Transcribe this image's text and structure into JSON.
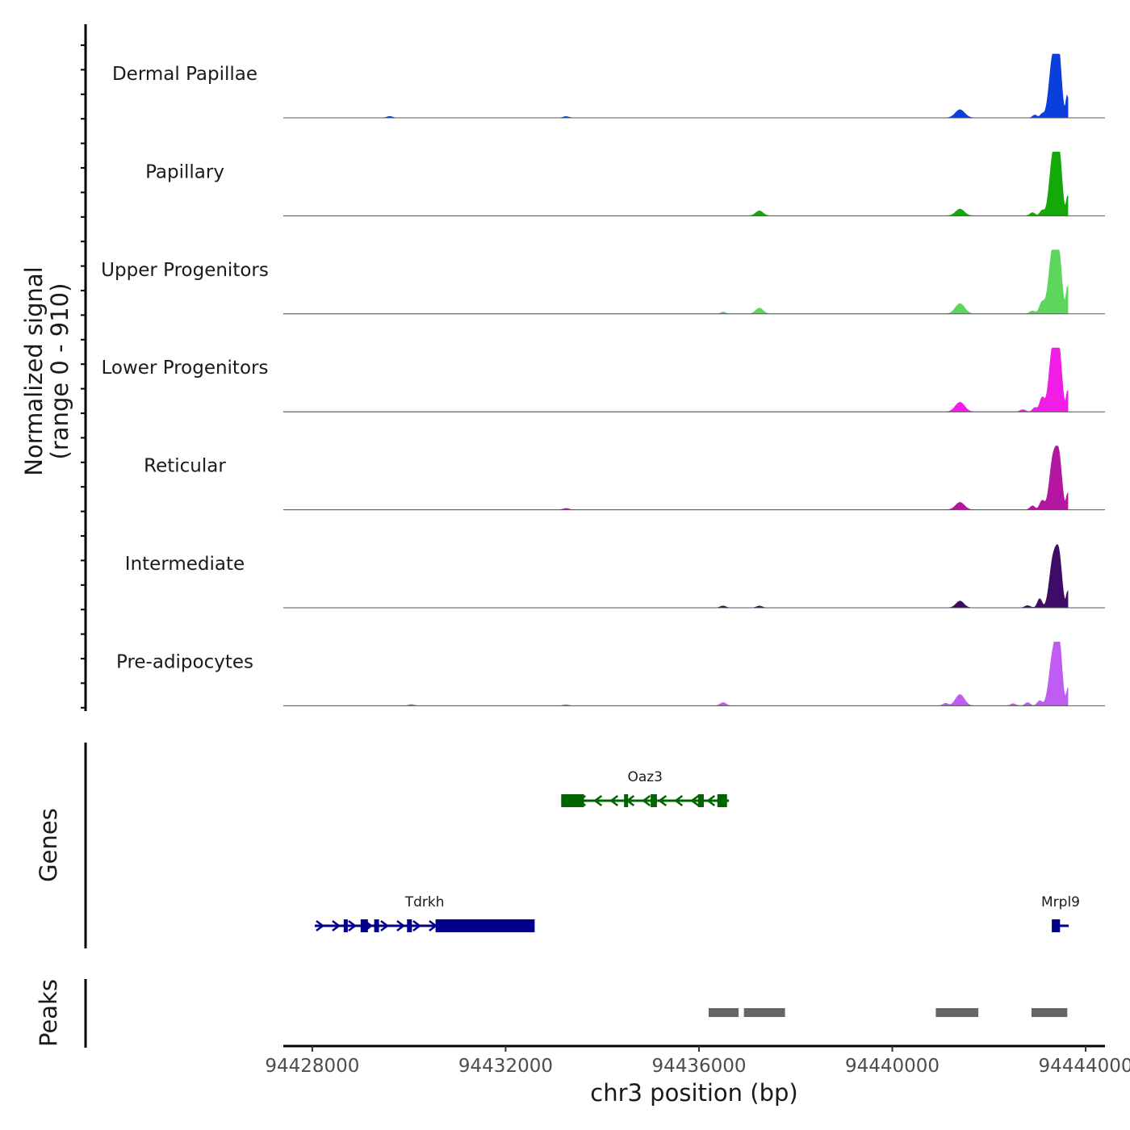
{
  "chart_data": {
    "type": "area",
    "title": "",
    "xlabel": "chr3 position (bp)",
    "ylabel": "Normalized signal\n(range 0 - 910)",
    "xlim": [
      94427400,
      94444400
    ],
    "ylim": [
      0,
      910
    ],
    "x_ticks": [
      94428000,
      94432000,
      94436000,
      94440000,
      94444000
    ],
    "x_tick_labels": [
      "94428000",
      "94432000",
      "94436000",
      "94440000",
      "94444000"
    ],
    "series": [
      {
        "name": "Dermal Papillae",
        "color": "#0b3fdb",
        "peaks": [
          {
            "pos": 94429600,
            "h": 20,
            "w": 55
          },
          {
            "pos": 94433250,
            "h": 18,
            "w": 55
          },
          {
            "pos": 94441400,
            "h": 115,
            "w": 95
          },
          {
            "pos": 94442950,
            "h": 40,
            "w": 45
          },
          {
            "pos": 94443100,
            "h": 55,
            "w": 40
          },
          {
            "pos": 94443320,
            "h": 830,
            "w": 75
          },
          {
            "pos": 94443440,
            "h": 840,
            "w": 60
          },
          {
            "pos": 94443620,
            "h": 310,
            "w": 30
          }
        ]
      },
      {
        "name": "Papillary",
        "color": "#14a80a",
        "peaks": [
          {
            "pos": 94437250,
            "h": 70,
            "w": 75
          },
          {
            "pos": 94441400,
            "h": 95,
            "w": 90
          },
          {
            "pos": 94442900,
            "h": 45,
            "w": 50
          },
          {
            "pos": 94443100,
            "h": 75,
            "w": 45
          },
          {
            "pos": 94443330,
            "h": 860,
            "w": 75
          },
          {
            "pos": 94443450,
            "h": 790,
            "w": 60
          },
          {
            "pos": 94443630,
            "h": 280,
            "w": 30
          }
        ]
      },
      {
        "name": "Upper Progenitors",
        "color": "#5cd65c",
        "peaks": [
          {
            "pos": 94436500,
            "h": 25,
            "w": 45
          },
          {
            "pos": 94437250,
            "h": 80,
            "w": 75
          },
          {
            "pos": 94441400,
            "h": 145,
            "w": 95
          },
          {
            "pos": 94442900,
            "h": 40,
            "w": 55
          },
          {
            "pos": 94443100,
            "h": 160,
            "w": 55
          },
          {
            "pos": 94443320,
            "h": 910,
            "w": 80
          },
          {
            "pos": 94443450,
            "h": 700,
            "w": 60
          },
          {
            "pos": 94443630,
            "h": 390,
            "w": 35
          }
        ]
      },
      {
        "name": "Lower Progenitors",
        "color": "#f01de6",
        "peaks": [
          {
            "pos": 94441400,
            "h": 135,
            "w": 95
          },
          {
            "pos": 94442700,
            "h": 30,
            "w": 55
          },
          {
            "pos": 94442950,
            "h": 60,
            "w": 45
          },
          {
            "pos": 94443100,
            "h": 200,
            "w": 50
          },
          {
            "pos": 94443320,
            "h": 905,
            "w": 75
          },
          {
            "pos": 94443450,
            "h": 780,
            "w": 60
          },
          {
            "pos": 94443630,
            "h": 300,
            "w": 30
          }
        ]
      },
      {
        "name": "Reticular",
        "color": "#b3179f",
        "peaks": [
          {
            "pos": 94433250,
            "h": 18,
            "w": 60
          },
          {
            "pos": 94441400,
            "h": 105,
            "w": 90
          },
          {
            "pos": 94442900,
            "h": 55,
            "w": 50
          },
          {
            "pos": 94443100,
            "h": 130,
            "w": 50
          },
          {
            "pos": 94443330,
            "h": 730,
            "w": 75
          },
          {
            "pos": 94443450,
            "h": 640,
            "w": 60
          },
          {
            "pos": 94443630,
            "h": 230,
            "w": 30
          }
        ]
      },
      {
        "name": "Intermediate",
        "color": "#3d0c66",
        "peaks": [
          {
            "pos": 94436500,
            "h": 25,
            "w": 55
          },
          {
            "pos": 94437250,
            "h": 25,
            "w": 55
          },
          {
            "pos": 94441400,
            "h": 95,
            "w": 80
          },
          {
            "pos": 94442800,
            "h": 30,
            "w": 55
          },
          {
            "pos": 94443050,
            "h": 130,
            "w": 45
          },
          {
            "pos": 94443330,
            "h": 690,
            "w": 75
          },
          {
            "pos": 94443450,
            "h": 640,
            "w": 60
          },
          {
            "pos": 94443630,
            "h": 230,
            "w": 30
          }
        ]
      },
      {
        "name": "Pre-adipocytes",
        "color": "#bf5cf2",
        "peaks": [
          {
            "pos": 94430050,
            "h": 18,
            "w": 50
          },
          {
            "pos": 94433250,
            "h": 15,
            "w": 50
          },
          {
            "pos": 94436500,
            "h": 45,
            "w": 60
          },
          {
            "pos": 94441100,
            "h": 35,
            "w": 50
          },
          {
            "pos": 94441400,
            "h": 160,
            "w": 90
          },
          {
            "pos": 94442500,
            "h": 30,
            "w": 50
          },
          {
            "pos": 94442800,
            "h": 45,
            "w": 50
          },
          {
            "pos": 94443050,
            "h": 70,
            "w": 50
          },
          {
            "pos": 94443330,
            "h": 740,
            "w": 80
          },
          {
            "pos": 94443450,
            "h": 800,
            "w": 60
          },
          {
            "pos": 94443640,
            "h": 260,
            "w": 35
          }
        ]
      }
    ],
    "genes": [
      {
        "name": "Oaz3",
        "strand": "-",
        "color": "#006400",
        "start": 94433150,
        "end": 94436620,
        "exons": [
          [
            94433150,
            94433620
          ],
          [
            94434450,
            94434510
          ],
          [
            94435000,
            94435130
          ],
          [
            94435980,
            94436100
          ],
          [
            94436380,
            94436580
          ]
        ]
      },
      {
        "name": "Tdrkh",
        "strand": "+",
        "color": "#00008b",
        "start": 94428050,
        "end": 94432600,
        "exons": [
          [
            94428650,
            94428720
          ],
          [
            94429000,
            94429150
          ],
          [
            94429280,
            94429380
          ],
          [
            94429960,
            94430060
          ],
          [
            94430550,
            94432600
          ]
        ]
      },
      {
        "name": "Mrpl9",
        "strand": "+",
        "color": "#00008b",
        "start": 94443300,
        "end": 94443650,
        "exons": [
          [
            94443300,
            94443470
          ]
        ]
      }
    ],
    "gene_track_label": "Genes",
    "peaks_track_label": "Peaks",
    "peak_regions": [
      [
        94436200,
        94436820
      ],
      [
        94436930,
        94437780
      ],
      [
        94440900,
        94441780
      ],
      [
        94442880,
        94443620
      ]
    ]
  }
}
